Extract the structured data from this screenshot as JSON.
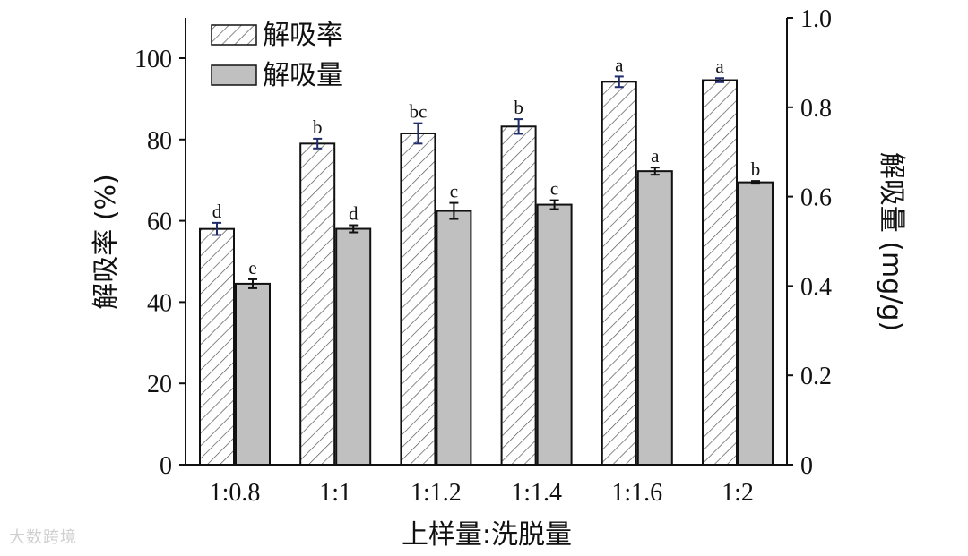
{
  "chart_data": {
    "type": "bar",
    "categories": [
      "1:0.8",
      "1:1",
      "1:1.2",
      "1:1.4",
      "1:1.6",
      "1:2"
    ],
    "xlabel": "上样量:洗脱量",
    "ylabel_left": "解吸率 (%)",
    "ylabel_right": "解吸量 (mg/g)",
    "ylim_left": [
      0,
      110
    ],
    "ylim_right": [
      0,
      1.0
    ],
    "yticks_left": [
      "0",
      "20",
      "40",
      "60",
      "80",
      "100"
    ],
    "yticks_right": [
      "0",
      "0.2",
      "0.4",
      "0.6",
      "0.8",
      "1.0"
    ],
    "series": [
      {
        "name": "解吸率",
        "axis": "left",
        "fill": "hatched",
        "values": [
          58.0,
          79.0,
          81.5,
          83.2,
          94.2,
          94.6
        ],
        "errors": [
          1.5,
          1.2,
          2.5,
          1.8,
          1.3,
          0.5
        ],
        "error_color": "#1f2d6b",
        "labels": [
          "d",
          "b",
          "bc",
          "b",
          "a",
          "a"
        ]
      },
      {
        "name": "解吸量",
        "axis": "right",
        "fill": "#c0c0c0",
        "values": [
          0.405,
          0.528,
          0.568,
          0.582,
          0.657,
          0.632
        ],
        "errors": [
          0.01,
          0.008,
          0.018,
          0.01,
          0.008,
          0.003
        ],
        "error_color": "#111111",
        "labels": [
          "e",
          "d",
          "c",
          "c",
          "a",
          "b"
        ]
      }
    ],
    "legend_position": "top-left"
  },
  "watermark": "大数跨境"
}
